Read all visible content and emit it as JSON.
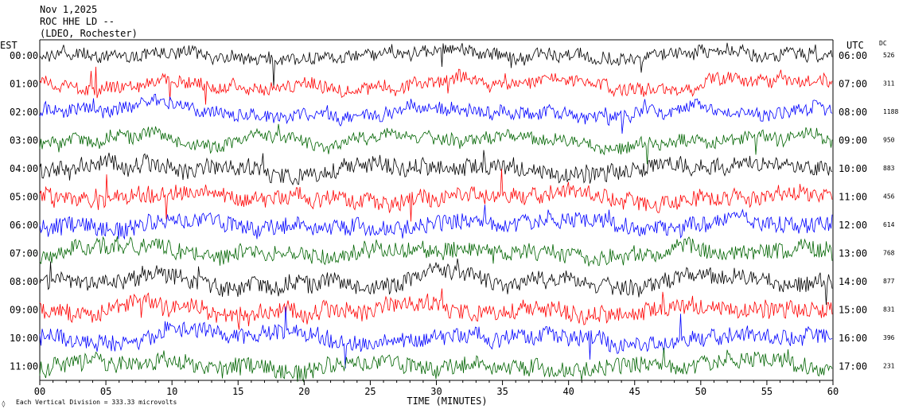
{
  "header": {
    "date": "Nov 1,2025",
    "station": "ROC HHE LD --",
    "network": "(LDEO, Rochester)"
  },
  "left_axis_label": "EST",
  "right_axis_label": "UTC",
  "dc_label": "DC",
  "x_axis_label": "TIME (MINUTES)",
  "footer": {
    "symbol": "◊",
    "scale_text": "Each Vertical Division = 333.33 microvolts"
  },
  "colors": {
    "black": "#000000",
    "red": "#ff0000",
    "blue": "#0000ff",
    "green": "#006400"
  },
  "chart_data": {
    "type": "line",
    "x_ticks": [
      "00",
      "05",
      "10",
      "15",
      "20",
      "25",
      "30",
      "35",
      "40",
      "45",
      "50",
      "55",
      "60"
    ],
    "xlim": [
      0,
      60
    ],
    "rows": [
      {
        "est": "00:00",
        "utc": "06:00",
        "dc": "526",
        "color": "black"
      },
      {
        "est": "01:00",
        "utc": "07:00",
        "dc": "311",
        "color": "red"
      },
      {
        "est": "02:00",
        "utc": "08:00",
        "dc": "1188",
        "color": "blue"
      },
      {
        "est": "03:00",
        "utc": "09:00",
        "dc": "950",
        "color": "green"
      },
      {
        "est": "04:00",
        "utc": "10:00",
        "dc": "883",
        "color": "black"
      },
      {
        "est": "05:00",
        "utc": "11:00",
        "dc": "456",
        "color": "red"
      },
      {
        "est": "06:00",
        "utc": "12:00",
        "dc": "614",
        "color": "blue"
      },
      {
        "est": "07:00",
        "utc": "13:00",
        "dc": "768",
        "color": "green"
      },
      {
        "est": "08:00",
        "utc": "14:00",
        "dc": "877",
        "color": "black"
      },
      {
        "est": "09:00",
        "utc": "15:00",
        "dc": "831",
        "color": "red"
      },
      {
        "est": "10:00",
        "utc": "16:00",
        "dc": "396",
        "color": "blue"
      },
      {
        "est": "11:00",
        "utc": "17:00",
        "dc": "231",
        "color": "green"
      }
    ]
  }
}
